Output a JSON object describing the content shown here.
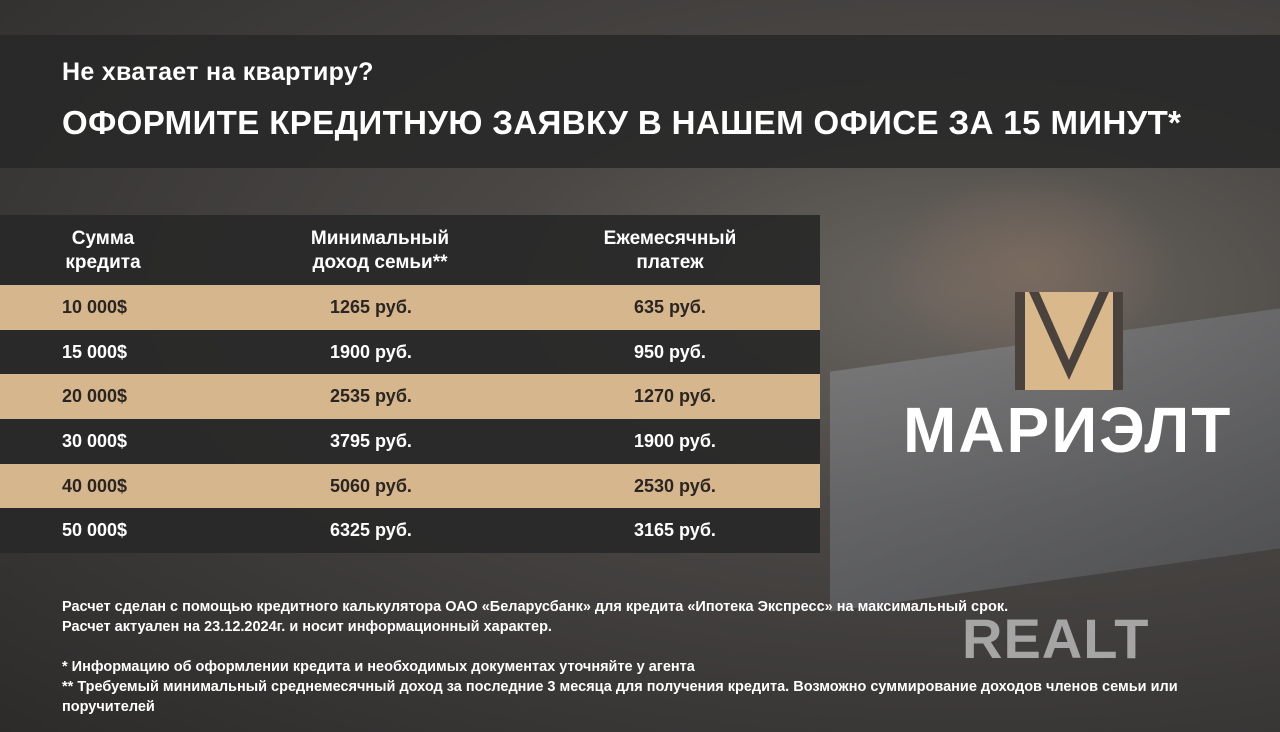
{
  "banner": {
    "question": "Не хватает на квартиру?",
    "headline": "ОФОРМИТЕ КРЕДИТНУЮ ЗАЯВКУ В НАШЕМ ОФИСЕ ЗА 15 МИНУТ*"
  },
  "table": {
    "headers": [
      "Сумма\nкредита",
      "Минимальный\nдоход семьи**",
      "Ежемесячный\nплатеж"
    ],
    "rows": [
      [
        "10 000$",
        "1265 руб.",
        "635 руб."
      ],
      [
        "15 000$",
        "1900 руб.",
        "950 руб."
      ],
      [
        "20 000$",
        "2535 руб.",
        "1270 руб."
      ],
      [
        "30 000$",
        "3795 руб.",
        "1900 руб."
      ],
      [
        "40 000$",
        "5060 руб.",
        "2530 руб."
      ],
      [
        "50 000$",
        "6325 руб.",
        "3165 руб."
      ]
    ],
    "colors": {
      "tan": "#d6b68c",
      "dark": "#2a2a2a"
    }
  },
  "notes": [
    "Расчет сделан с помощью кредитного калькулятора ОАО «Беларусбанк» для кредита «Ипотека Экспресс» на максимальный срок.",
    "Расчет актуален на 23.12.2024г. и носит информационный характер.",
    "* Информацию об оформлении кредита и необходимых документах уточняйте у агента",
    "** Требуемый минимальный среднемесячный доход за последние 3 месяца для получения кредита. Возможно суммирование доходов членов семьи или поручителей"
  ],
  "logo": {
    "brand": "МАРИЭЛТ",
    "watermark": "REALT"
  }
}
